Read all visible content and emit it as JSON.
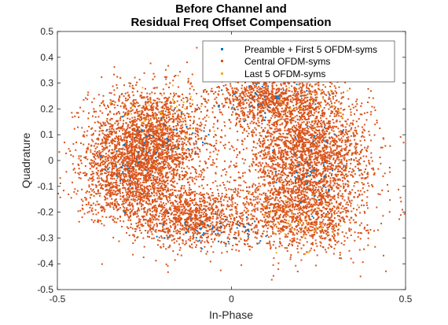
{
  "chart_data": {
    "type": "scatter",
    "title": [
      "Before Channel and",
      "Residual Freq Offset Compensation"
    ],
    "xlabel": "In-Phase",
    "ylabel": "Quadrature",
    "xlim": [
      -0.5,
      0.5
    ],
    "ylim": [
      -0.5,
      0.5
    ],
    "xticks": [
      "-0.5",
      "0",
      "0.5"
    ],
    "yticks": [
      "-0.5",
      "-0.4",
      "-0.3",
      "-0.2",
      "-0.1",
      "0",
      "0.1",
      "0.2",
      "0.3",
      "0.4",
      "0.5"
    ],
    "grid": false,
    "legend_position": "top-right",
    "series": [
      {
        "name": "Preamble + First 5 OFDM-syms",
        "color": "#0072BD",
        "clusters": [
          {
            "center": [
              -0.2,
              0.08
            ],
            "spread": [
              0.07,
              0.06
            ],
            "count": 45
          },
          {
            "center": [
              0.25,
              -0.02
            ],
            "spread": [
              0.06,
              0.07
            ],
            "count": 45
          },
          {
            "center": [
              -0.05,
              -0.27
            ],
            "spread": [
              0.08,
              0.04
            ],
            "count": 55
          },
          {
            "center": [
              0.08,
              0.25
            ],
            "spread": [
              0.07,
              0.04
            ],
            "count": 40
          },
          {
            "center": [
              -0.3,
              -0.08
            ],
            "spread": [
              0.05,
              0.05
            ],
            "count": 20
          }
        ]
      },
      {
        "name": "Central OFDM-syms",
        "color": "#D95319",
        "clusters": [
          {
            "center": [
              -0.24,
              0.06
            ],
            "spread": [
              0.085,
              0.11
            ],
            "count": 2600
          },
          {
            "center": [
              0.22,
              0.03
            ],
            "spread": [
              0.09,
              0.11
            ],
            "count": 2300
          },
          {
            "center": [
              -0.12,
              -0.22
            ],
            "spread": [
              0.09,
              0.06
            ],
            "count": 1100
          },
          {
            "center": [
              0.2,
              -0.2
            ],
            "spread": [
              0.09,
              0.08
            ],
            "count": 1200
          },
          {
            "center": [
              0.12,
              0.24
            ],
            "spread": [
              0.09,
              0.05
            ],
            "count": 1000
          },
          {
            "center": [
              -0.3,
              -0.1
            ],
            "spread": [
              0.07,
              0.07
            ],
            "count": 700
          }
        ]
      },
      {
        "name": "Last 5 OFDM-syms",
        "color": "#EDB120",
        "clusters": [
          {
            "center": [
              -0.2,
              0.18
            ],
            "spread": [
              0.06,
              0.07
            ],
            "count": 50
          },
          {
            "center": [
              0.2,
              -0.22
            ],
            "spread": [
              0.07,
              0.06
            ],
            "count": 50
          },
          {
            "center": [
              0.22,
              0.2
            ],
            "spread": [
              0.06,
              0.05
            ],
            "count": 20
          }
        ]
      }
    ]
  }
}
